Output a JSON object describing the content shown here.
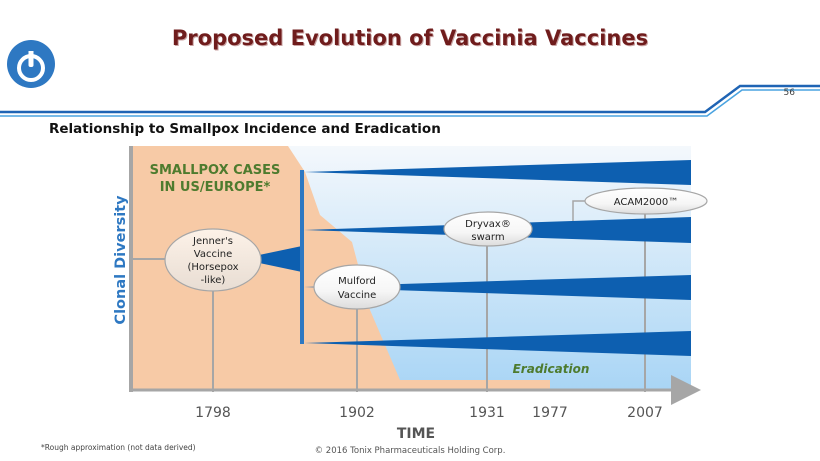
{
  "header": {
    "title": "Proposed Evolution of Vaccinia Vaccines",
    "page_number": "56",
    "logo_icon": "power-icon",
    "brand_color": "#2e78c2"
  },
  "subtitle": "Relationship to Smallpox Incidence and Eradication",
  "diagram": {
    "y_axis_label": "Clonal Diversity",
    "x_axis_label": "TIME",
    "smallpox_label_line1": "SMALLPOX CASES",
    "smallpox_label_line2": "IN US/EUROPE*",
    "eradication_label": "Eradication",
    "years": [
      "1798",
      "1902",
      "1931",
      "1977",
      "2007"
    ],
    "vaccines": {
      "jenner": [
        "Jenner's",
        "Vaccine",
        "(Horsepox",
        "-like)"
      ],
      "mulford": [
        "Mulford",
        "Vaccine"
      ],
      "dryvax": [
        "Dryvax®",
        "swarm"
      ],
      "acam": "ACAM2000™"
    },
    "colors": {
      "smallpox_fill": "#f7caa6",
      "wedge_blue": "#0d5fb0",
      "axis_gray": "#a6a6a6",
      "green_label": "#4e7b2e"
    }
  },
  "footer": {
    "footnote": "*Rough approximation (not data derived)",
    "copyright": "© 2016 Tonix Pharmaceuticals Holding Corp."
  }
}
